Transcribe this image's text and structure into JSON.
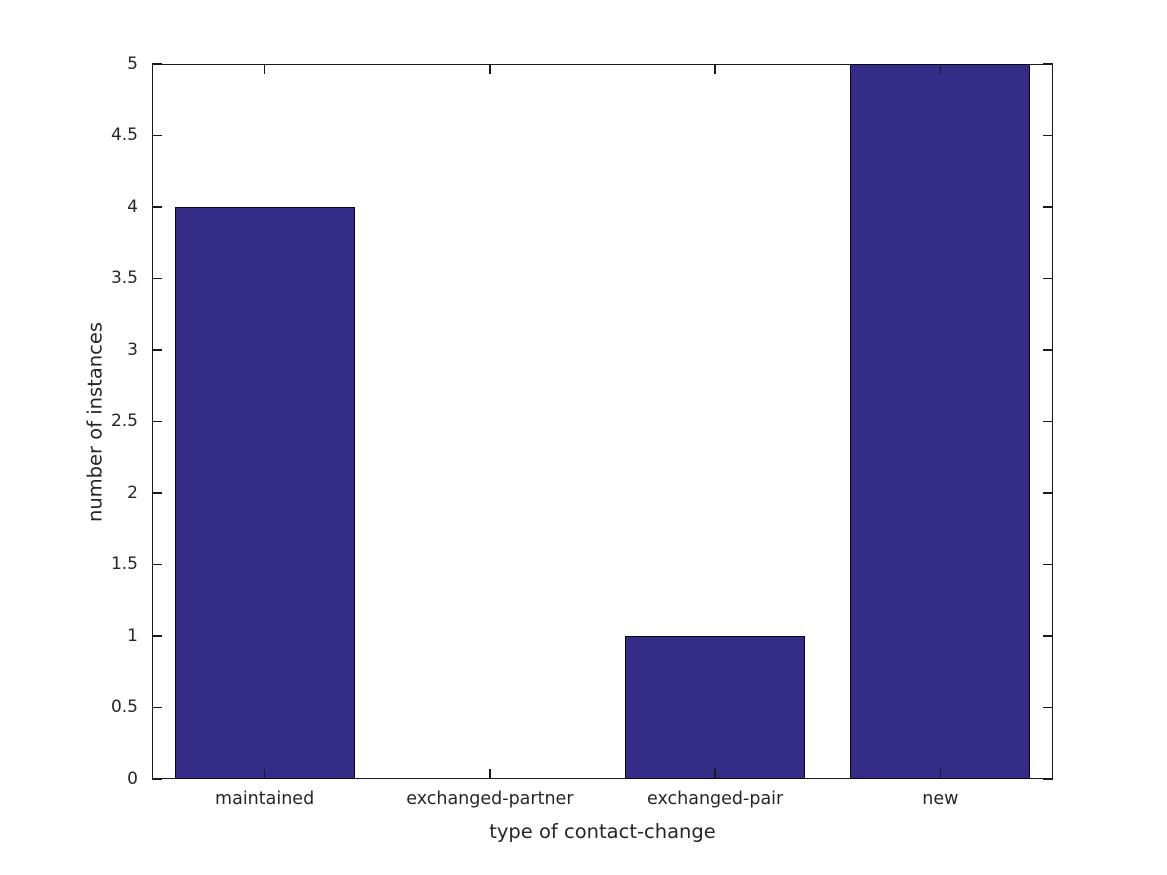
{
  "figure": {
    "background": "#ffffff",
    "axis_color": "#1a1a1a",
    "text_color": "#262626"
  },
  "chart_data": {
    "type": "bar",
    "title": "",
    "categories": [
      "maintained",
      "exchanged-partner",
      "exchanged-pair",
      "new"
    ],
    "values": [
      4,
      0,
      1,
      5
    ],
    "xlabel": "type of contact-change",
    "ylabel": "number of instances",
    "ylim": [
      0,
      5
    ],
    "ytick_step": 0.5,
    "ytick_labels": [
      "0",
      "0.5",
      "1",
      "1.5",
      "2",
      "2.5",
      "3",
      "3.5",
      "4",
      "4.5",
      "5"
    ],
    "bar_color": "#342c87",
    "bar_edge_color": "#06061a",
    "bar_width_fraction": 0.8,
    "grid": false,
    "legend_position": "none",
    "tick_direction": "in",
    "box": true
  }
}
